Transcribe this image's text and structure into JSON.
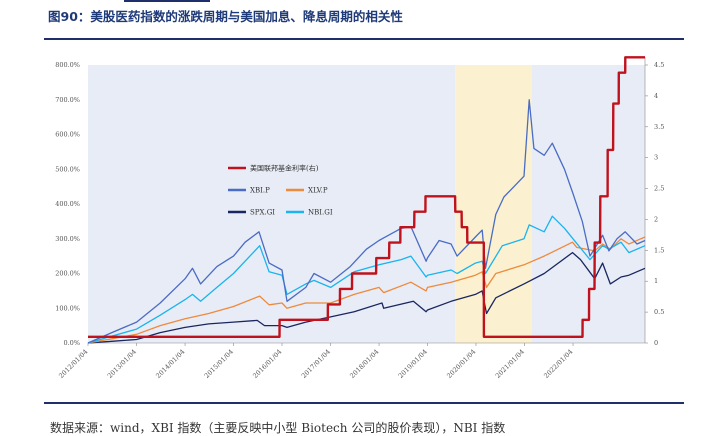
{
  "figure": {
    "title": "图90：美股医药指数的涨跌周期与美国加息、降息周期的相关性",
    "source_text": "数据来源：wind，XBI 指数（主要反映中小型 Biotech 公司的股价表现），NBI 指数"
  },
  "colors": {
    "fed_rate": "#c0121c",
    "XBI.P": "#4a6cc4",
    "XLV.P": "#ee8a3c",
    "SPX.GI": "#1a2660",
    "NBI.GI": "#1ab4ee",
    "band_blue": "#e8ecf6",
    "band_yellow": "#fbf1d0",
    "rule": "#1f2f6b"
  },
  "chart_data": {
    "type": "line",
    "title": "",
    "xlabel": "",
    "ylabel": "",
    "y_left": {
      "min": 0,
      "max": 800,
      "ticks": [
        "0.0%",
        "100.0%",
        "200.0%",
        "300.0%",
        "400.0%",
        "500.0%",
        "600.0%",
        "700.0%",
        "800.0%"
      ]
    },
    "y_right": {
      "min": 0,
      "max": 4.5,
      "ticks": [
        "0",
        "0.5",
        "1",
        "1.5",
        "2",
        "2.5",
        "3",
        "3.5",
        "4",
        "4.5"
      ]
    },
    "x_range": [
      "2012-01-04",
      "2023-06-30"
    ],
    "x_ticks": [
      "2012/01/04",
      "2013/01/04",
      "2014/01/04",
      "2015/01/04",
      "2016/01/04",
      "2017/01/04",
      "2018/01/04",
      "2019/01/04",
      "2020/01/04",
      "2021/01/04",
      "2022/01/04"
    ],
    "shaded_periods": [
      {
        "start": "2012-01-04",
        "end": "2015-12-16",
        "color": "band_blue"
      },
      {
        "start": "2015-12-16",
        "end": "2019-08-01",
        "color": "band_blue"
      },
      {
        "start": "2019-08-01",
        "end": "2021-03-01",
        "color": "band_yellow"
      },
      {
        "start": "2021-03-01",
        "end": "2023-06-30",
        "color": "band_blue"
      }
    ],
    "legend": {
      "placement": "upper-left",
      "rows": [
        [
          "美国联邦基金利率(右)"
        ],
        [
          "XBI.P",
          "XLV.P"
        ],
        [
          "SPX.GI",
          "NBI.GI"
        ]
      ]
    },
    "series": [
      {
        "name": "美国联邦基金利率(右)",
        "axis": "right",
        "step": true,
        "points": [
          [
            "2012-01-04",
            0.1
          ],
          [
            "2015-12-16",
            0.1
          ],
          [
            "2015-12-17",
            0.375
          ],
          [
            "2016-12-14",
            0.375
          ],
          [
            "2016-12-15",
            0.625
          ],
          [
            "2017-03-15",
            0.625
          ],
          [
            "2017-03-16",
            0.875
          ],
          [
            "2017-06-14",
            0.875
          ],
          [
            "2017-06-15",
            1.125
          ],
          [
            "2017-12-13",
            1.125
          ],
          [
            "2017-12-14",
            1.375
          ],
          [
            "2018-03-21",
            1.375
          ],
          [
            "2018-03-22",
            1.625
          ],
          [
            "2018-06-13",
            1.625
          ],
          [
            "2018-06-14",
            1.875
          ],
          [
            "2018-09-26",
            1.875
          ],
          [
            "2018-09-27",
            2.125
          ],
          [
            "2018-12-19",
            2.125
          ],
          [
            "2018-12-20",
            2.375
          ],
          [
            "2019-07-31",
            2.375
          ],
          [
            "2019-08-01",
            2.125
          ],
          [
            "2019-09-18",
            2.125
          ],
          [
            "2019-09-19",
            1.875
          ],
          [
            "2019-10-30",
            1.875
          ],
          [
            "2019-10-31",
            1.625
          ],
          [
            "2020-03-03",
            1.625
          ],
          [
            "2020-03-04",
            0.1
          ],
          [
            "2022-03-16",
            0.1
          ],
          [
            "2022-03-17",
            0.375
          ],
          [
            "2022-05-04",
            0.375
          ],
          [
            "2022-05-05",
            0.875
          ],
          [
            "2022-06-15",
            0.875
          ],
          [
            "2022-06-16",
            1.625
          ],
          [
            "2022-07-27",
            1.625
          ],
          [
            "2022-07-28",
            2.375
          ],
          [
            "2022-09-21",
            2.375
          ],
          [
            "2022-09-22",
            3.125
          ],
          [
            "2022-11-02",
            3.125
          ],
          [
            "2022-11-03",
            3.875
          ],
          [
            "2022-12-14",
            3.875
          ],
          [
            "2022-12-15",
            4.375
          ],
          [
            "2023-02-01",
            4.375
          ],
          [
            "2023-02-02",
            4.625
          ],
          [
            "2023-06-30",
            4.625
          ]
        ]
      },
      {
        "name": "XBI.P",
        "axis": "left",
        "points": [
          [
            "2012-01-04",
            0
          ],
          [
            "2012-07-01",
            30
          ],
          [
            "2013-01-04",
            60
          ],
          [
            "2013-07-01",
            115
          ],
          [
            "2014-01-04",
            185
          ],
          [
            "2014-03-01",
            215
          ],
          [
            "2014-05-01",
            170
          ],
          [
            "2014-09-01",
            220
          ],
          [
            "2015-01-04",
            250
          ],
          [
            "2015-04-01",
            290
          ],
          [
            "2015-07-15",
            320
          ],
          [
            "2015-09-29",
            230
          ],
          [
            "2016-01-04",
            210
          ],
          [
            "2016-02-11",
            120
          ],
          [
            "2016-07-01",
            160
          ],
          [
            "2016-09-01",
            200
          ],
          [
            "2017-01-04",
            175
          ],
          [
            "2017-06-01",
            220
          ],
          [
            "2017-10-01",
            270
          ],
          [
            "2018-01-04",
            295
          ],
          [
            "2018-06-20",
            330
          ],
          [
            "2018-09-01",
            335
          ],
          [
            "2018-12-24",
            235
          ],
          [
            "2019-01-04",
            245
          ],
          [
            "2019-04-01",
            295
          ],
          [
            "2019-07-01",
            285
          ],
          [
            "2019-08-15",
            250
          ],
          [
            "2019-12-31",
            305
          ],
          [
            "2020-02-20",
            325
          ],
          [
            "2020-03-16",
            215
          ],
          [
            "2020-06-01",
            370
          ],
          [
            "2020-08-01",
            420
          ],
          [
            "2020-12-31",
            480
          ],
          [
            "2021-02-08",
            700
          ],
          [
            "2021-03-15",
            560
          ],
          [
            "2021-06-01",
            540
          ],
          [
            "2021-08-01",
            575
          ],
          [
            "2021-11-01",
            500
          ],
          [
            "2022-01-04",
            430
          ],
          [
            "2022-03-15",
            350
          ],
          [
            "2022-05-12",
            250
          ],
          [
            "2022-08-15",
            310
          ],
          [
            "2022-10-01",
            265
          ],
          [
            "2022-12-01",
            300
          ],
          [
            "2023-02-01",
            320
          ],
          [
            "2023-05-01",
            285
          ],
          [
            "2023-06-30",
            295
          ]
        ]
      },
      {
        "name": "XLV.P",
        "axis": "left",
        "points": [
          [
            "2012-01-04",
            0
          ],
          [
            "2012-07-01",
            12
          ],
          [
            "2013-01-04",
            25
          ],
          [
            "2013-07-01",
            50
          ],
          [
            "2014-01-04",
            70
          ],
          [
            "2014-07-01",
            85
          ],
          [
            "2015-01-04",
            105
          ],
          [
            "2015-07-20",
            135
          ],
          [
            "2015-09-29",
            110
          ],
          [
            "2016-01-04",
            115
          ],
          [
            "2016-02-11",
            100
          ],
          [
            "2016-07-01",
            115
          ],
          [
            "2017-01-04",
            115
          ],
          [
            "2017-07-01",
            140
          ],
          [
            "2018-01-04",
            160
          ],
          [
            "2018-02-08",
            145
          ],
          [
            "2018-09-01",
            175
          ],
          [
            "2018-12-24",
            150
          ],
          [
            "2019-01-04",
            160
          ],
          [
            "2019-07-01",
            175
          ],
          [
            "2019-12-31",
            195
          ],
          [
            "2020-02-20",
            205
          ],
          [
            "2020-03-23",
            160
          ],
          [
            "2020-06-01",
            200
          ],
          [
            "2020-12-31",
            225
          ],
          [
            "2021-06-01",
            250
          ],
          [
            "2021-12-31",
            290
          ],
          [
            "2022-02-01",
            275
          ],
          [
            "2022-06-16",
            265
          ],
          [
            "2022-08-15",
            285
          ],
          [
            "2022-10-12",
            270
          ],
          [
            "2022-12-31",
            300
          ],
          [
            "2023-03-01",
            285
          ],
          [
            "2023-06-30",
            305
          ]
        ]
      },
      {
        "name": "SPX.GI",
        "axis": "left",
        "points": [
          [
            "2012-01-04",
            0
          ],
          [
            "2012-07-01",
            5
          ],
          [
            "2013-01-04",
            10
          ],
          [
            "2013-07-01",
            30
          ],
          [
            "2014-01-04",
            45
          ],
          [
            "2014-07-01",
            55
          ],
          [
            "2015-01-04",
            60
          ],
          [
            "2015-07-01",
            65
          ],
          [
            "2015-08-25",
            50
          ],
          [
            "2016-01-04",
            50
          ],
          [
            "2016-02-11",
            45
          ],
          [
            "2016-07-01",
            60
          ],
          [
            "2017-01-04",
            75
          ],
          [
            "2017-07-01",
            90
          ],
          [
            "2018-01-26",
            115
          ],
          [
            "2018-02-08",
            100
          ],
          [
            "2018-09-20",
            120
          ],
          [
            "2018-12-24",
            90
          ],
          [
            "2019-01-04",
            95
          ],
          [
            "2019-07-01",
            120
          ],
          [
            "2019-12-31",
            140
          ],
          [
            "2020-02-19",
            150
          ],
          [
            "2020-03-23",
            85
          ],
          [
            "2020-06-01",
            130
          ],
          [
            "2020-12-31",
            170
          ],
          [
            "2021-06-01",
            200
          ],
          [
            "2021-12-31",
            260
          ],
          [
            "2022-03-01",
            240
          ],
          [
            "2022-06-16",
            185
          ],
          [
            "2022-08-15",
            230
          ],
          [
            "2022-10-12",
            170
          ],
          [
            "2022-12-31",
            190
          ],
          [
            "2023-03-01",
            195
          ],
          [
            "2023-06-30",
            215
          ]
        ]
      },
      {
        "name": "NBI.GI",
        "axis": "left",
        "points": [
          [
            "2012-01-04",
            0
          ],
          [
            "2012-07-01",
            20
          ],
          [
            "2013-01-04",
            40
          ],
          [
            "2013-07-01",
            80
          ],
          [
            "2014-01-04",
            125
          ],
          [
            "2014-03-01",
            140
          ],
          [
            "2014-05-01",
            120
          ],
          [
            "2014-09-01",
            160
          ],
          [
            "2015-01-04",
            200
          ],
          [
            "2015-07-20",
            280
          ],
          [
            "2015-09-29",
            205
          ],
          [
            "2016-01-04",
            195
          ],
          [
            "2016-02-11",
            140
          ],
          [
            "2016-07-01",
            170
          ],
          [
            "2016-09-01",
            180
          ],
          [
            "2017-01-04",
            160
          ],
          [
            "2017-07-01",
            205
          ],
          [
            "2018-01-04",
            225
          ],
          [
            "2018-06-20",
            240
          ],
          [
            "2018-09-01",
            250
          ],
          [
            "2018-12-24",
            190
          ],
          [
            "2019-01-04",
            195
          ],
          [
            "2019-07-01",
            210
          ],
          [
            "2019-08-15",
            200
          ],
          [
            "2019-12-31",
            230
          ],
          [
            "2020-02-20",
            235
          ],
          [
            "2020-03-16",
            200
          ],
          [
            "2020-07-20",
            280
          ],
          [
            "2020-12-31",
            300
          ],
          [
            "2021-02-08",
            340
          ],
          [
            "2021-06-01",
            320
          ],
          [
            "2021-08-01",
            365
          ],
          [
            "2021-11-01",
            330
          ],
          [
            "2022-01-04",
            300
          ],
          [
            "2022-05-12",
            240
          ],
          [
            "2022-08-15",
            280
          ],
          [
            "2022-10-01",
            270
          ],
          [
            "2022-12-31",
            290
          ],
          [
            "2023-03-01",
            260
          ],
          [
            "2023-06-30",
            280
          ]
        ]
      }
    ]
  }
}
